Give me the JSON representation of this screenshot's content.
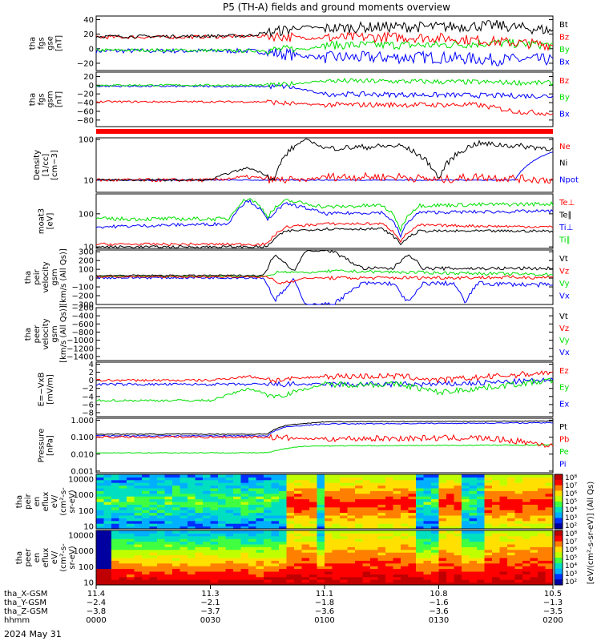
{
  "title": "P5 (TH-A) fields and ground moments overview",
  "colors": {
    "black": "#000000",
    "red": "#ff0000",
    "green": "#00e000",
    "blue": "#0000ff"
  },
  "panels": [
    {
      "id": "fgs_bt",
      "label": [
        "tha",
        "fgs",
        "gse",
        "[nT]"
      ],
      "ticks": [
        "40",
        "20",
        "0",
        "−20"
      ],
      "legend": [
        {
          "text": "Bt",
          "color": "black"
        },
        {
          "text": "Bz",
          "color": "red"
        },
        {
          "text": "By",
          "color": "green"
        },
        {
          "text": "Bx",
          "color": "blue"
        }
      ]
    },
    {
      "id": "fgs_gsm",
      "label": [
        "tha",
        "fgs",
        "gsm",
        "[nT]"
      ],
      "ticks": [
        "20",
        "0",
        "−20",
        "−40",
        "−60",
        "−80"
      ],
      "legend": [
        {
          "text": "Bz",
          "color": "red"
        },
        {
          "text": "By",
          "color": "green"
        },
        {
          "text": "Bx",
          "color": "blue"
        }
      ]
    },
    {
      "id": "bar",
      "label": [],
      "ticks": [],
      "legend": []
    },
    {
      "id": "density",
      "label": [
        "Density",
        "[1/cc]",
        "[cm−3]"
      ],
      "ticks": [
        "100",
        "10"
      ],
      "legend": [
        {
          "text": "Ne",
          "color": "red"
        },
        {
          "text": "Ni",
          "color": "black"
        },
        {
          "text": "Npot",
          "color": "blue"
        }
      ]
    },
    {
      "id": "temp",
      "label": [
        "moat3",
        "[eV]"
      ],
      "ticks": [
        "100",
        "10"
      ],
      "legend": [
        {
          "text": "Te⊥",
          "color": "red"
        },
        {
          "text": "Te∥",
          "color": "black"
        },
        {
          "text": "Ti⊥",
          "color": "blue"
        },
        {
          "text": "Ti∥",
          "color": "green"
        }
      ]
    },
    {
      "id": "peir_vel",
      "label": [
        "tha",
        "peir",
        "velocity",
        "gsm",
        "[km/s (All Qs)]"
      ],
      "ticks": [
        "300",
        "200",
        "100",
        "0",
        "−100",
        "−200",
        "−300"
      ],
      "legend": [
        {
          "text": "Vt",
          "color": "black"
        },
        {
          "text": "Vz",
          "color": "red"
        },
        {
          "text": "Vy",
          "color": "green"
        },
        {
          "text": "Vx",
          "color": "blue"
        }
      ]
    },
    {
      "id": "peer_vel",
      "label": [
        "tha",
        "peer",
        "velocity",
        "gsm",
        "[km/s (All Qs)]"
      ],
      "ticks": [
        "−200",
        "−400",
        "−600",
        "−800",
        "−1000",
        "−1200",
        "−1400"
      ],
      "legend": [
        {
          "text": "Vt",
          "color": "black"
        },
        {
          "text": "Vz",
          "color": "red"
        },
        {
          "text": "Vy",
          "color": "green"
        },
        {
          "text": "Vx",
          "color": "blue"
        }
      ]
    },
    {
      "id": "efield",
      "label": [
        "E=−VxB",
        "[mV/m]"
      ],
      "ticks": [
        "4",
        "2",
        "0",
        "−2",
        "−4",
        "−6",
        "−8"
      ],
      "legend": [
        {
          "text": "Ez",
          "color": "red"
        },
        {
          "text": "Ey",
          "color": "green"
        },
        {
          "text": "Ex",
          "color": "blue"
        }
      ]
    },
    {
      "id": "pressure",
      "label": [
        "Pressure",
        "[nPa]"
      ],
      "ticks": [
        "1.000",
        "0.100",
        "0.010",
        "0.001"
      ],
      "legend": [
        {
          "text": "Pt",
          "color": "black"
        },
        {
          "text": "Pb",
          "color": "red"
        },
        {
          "text": "Pe",
          "color": "green"
        },
        {
          "text": "Pi",
          "color": "blue"
        }
      ]
    },
    {
      "id": "peir_spec",
      "label": [
        "tha",
        "peir",
        "en",
        "eflux",
        "eV/",
        "(cm²-s-",
        "sr-eV)"
      ],
      "ticks": [
        "10000",
        "1000",
        "100",
        "10"
      ],
      "legend": []
    },
    {
      "id": "peer_spec",
      "label": [
        "tha",
        "peer",
        "en",
        "eflux",
        "eV/",
        "(cm²-s-",
        "sr-eV)"
      ],
      "ticks": [
        "10000",
        "1000",
        "100",
        "10"
      ],
      "legend": []
    }
  ],
  "colorbar": {
    "ticks": [
      "10⁸",
      "10⁷",
      "10⁶",
      "10⁵",
      "10⁴",
      "10³",
      "10²"
    ],
    "label": "[eV/(cm²-s-sr-eV)] (All Qs)"
  },
  "x_axis": {
    "rows": [
      {
        "name": "tha_X-GSM",
        "values": [
          "11.4",
          "11.3",
          "11.1",
          "10.8",
          "10.5"
        ]
      },
      {
        "name": "tha_Y-GSM",
        "values": [
          "−2.4",
          "−2.1",
          "−1.8",
          "−1.6",
          "−1.3"
        ]
      },
      {
        "name": "tha_Z-GSM",
        "values": [
          "−3.8",
          "−3.7",
          "−3.6",
          "−3.6",
          "−3.5"
        ]
      },
      {
        "name": "hhmm",
        "values": [
          "0000",
          "0030",
          "0100",
          "0130",
          "0200"
        ]
      }
    ],
    "date": "2024 May 31"
  },
  "chart_data": {
    "type": "line",
    "title": "P5 (TH-A) fields and ground moments overview",
    "x_label": "hhmm",
    "x_range": [
      "0000",
      "0200"
    ],
    "series_fgs_bt": {
      "x": [
        "0000",
        "0020",
        "0040",
        "0045",
        "0055",
        "0100",
        "0115",
        "0130",
        "0145",
        "0200"
      ],
      "Bt": [
        17,
        17,
        18,
        22,
        30,
        28,
        30,
        30,
        32,
        25
      ],
      "Bz": [
        16,
        16,
        17,
        18,
        15,
        15,
        16,
        15,
        10,
        5
      ],
      "By": [
        -2,
        -2,
        -3,
        -2,
        0,
        5,
        5,
        5,
        8,
        5
      ],
      "Bx": [
        -3,
        -3,
        -3,
        -5,
        -10,
        -12,
        -12,
        -12,
        -15,
        -15
      ]
    },
    "series_density": {
      "x": [
        "0000",
        "0030",
        "0040",
        "0047",
        "0055",
        "0100",
        "0120",
        "0130",
        "0140",
        "0200"
      ],
      "Ni": [
        10,
        10,
        20,
        10,
        100,
        60,
        70,
        10,
        80,
        60
      ],
      "Ne": [
        10,
        10,
        12,
        10,
        10,
        12,
        12,
        10,
        12,
        10
      ]
    },
    "series_efield": {
      "x": [
        "0000",
        "0030",
        "0040",
        "0047",
        "0100",
        "0120",
        "0130",
        "0200"
      ],
      "Ez": [
        0,
        0,
        1,
        0,
        1,
        1,
        0,
        2
      ],
      "Ey": [
        -5,
        -5,
        -2,
        -4,
        -1,
        -1,
        -3,
        0
      ],
      "Ex": [
        -1,
        -1,
        -1,
        -1,
        -1,
        -1,
        -1,
        0
      ]
    }
  }
}
